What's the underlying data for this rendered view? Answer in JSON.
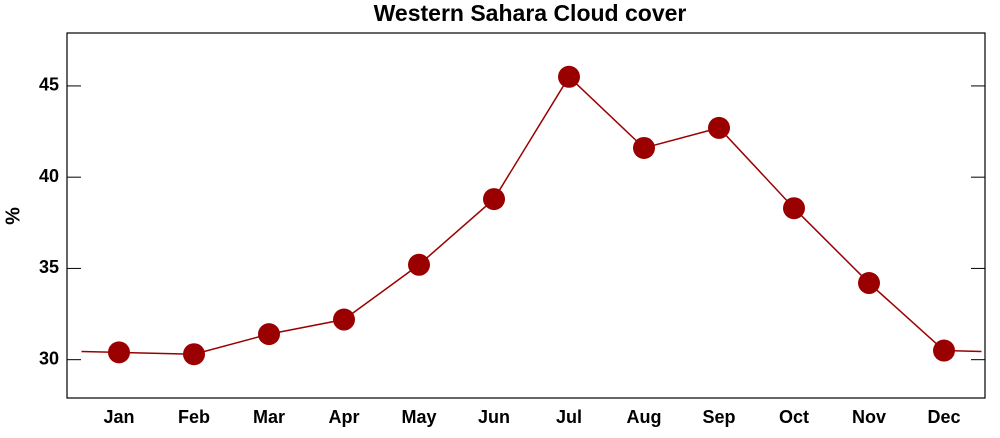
{
  "chart_data": {
    "type": "line",
    "title": "Western Sahara Cloud cover",
    "ylabel": "%",
    "categories": [
      "Jan",
      "Feb",
      "Mar",
      "Apr",
      "May",
      "Jun",
      "Jul",
      "Aug",
      "Sep",
      "Oct",
      "Nov",
      "Dec"
    ],
    "values": [
      30.4,
      30.3,
      31.4,
      32.2,
      35.2,
      38.8,
      45.5,
      41.6,
      42.7,
      38.3,
      34.2,
      30.5
    ],
    "color": "#9b0000",
    "ylim": [
      27.9,
      47.9
    ],
    "yticks": [
      30,
      35,
      40,
      45
    ],
    "grid": false
  }
}
